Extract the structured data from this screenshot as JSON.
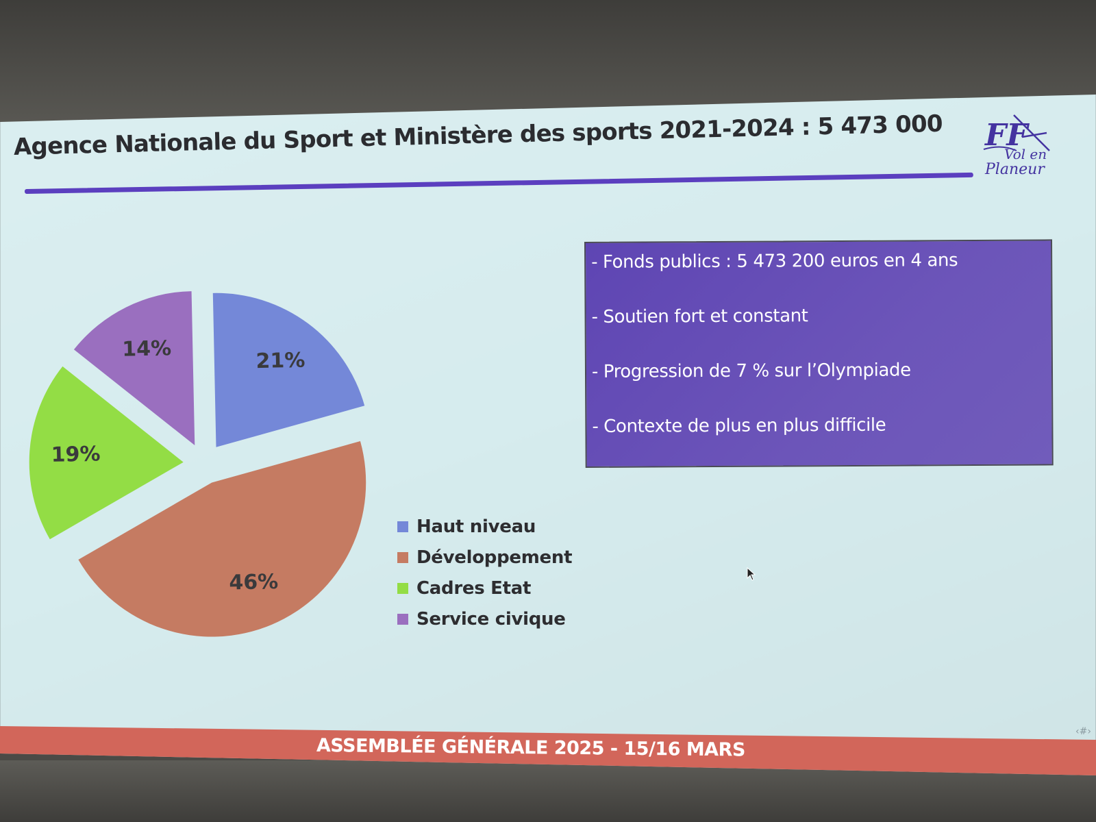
{
  "slide": {
    "title": "Agence Nationale du Sport et Ministère des sports 2021-2024 : 5 473 000",
    "footer": "ASSEMBLÉE GÉNÉRALE 2025 - 15/16 MARS",
    "corner_mark": "‹#›"
  },
  "logo": {
    "letters": "FF",
    "line1": "Vol en",
    "line2": "Planeur"
  },
  "info": {
    "items": [
      "- Fonds publics : 5 473 200 euros en 4 ans",
      "- Soutien fort et constant",
      "- Progression de 7 % sur l’Olympiade",
      "- Contexte de plus en plus difficile"
    ]
  },
  "colors": {
    "background": "#d8edef",
    "title_rule": "#5b3fbf",
    "info_box": "#6650b6",
    "footer_band": "#d2665a"
  },
  "chart_data": {
    "type": "pie",
    "categories": [
      "Haut niveau",
      "Développement",
      "Cadres Etat",
      "Service civique"
    ],
    "values": [
      21,
      46,
      19,
      14
    ],
    "data_labels": [
      "21%",
      "46%",
      "19%",
      "14%"
    ],
    "colors": [
      "#7488d8",
      "#c57b62",
      "#93dd45",
      "#9a6fbf"
    ],
    "exploded": true,
    "legend_position": "right"
  }
}
